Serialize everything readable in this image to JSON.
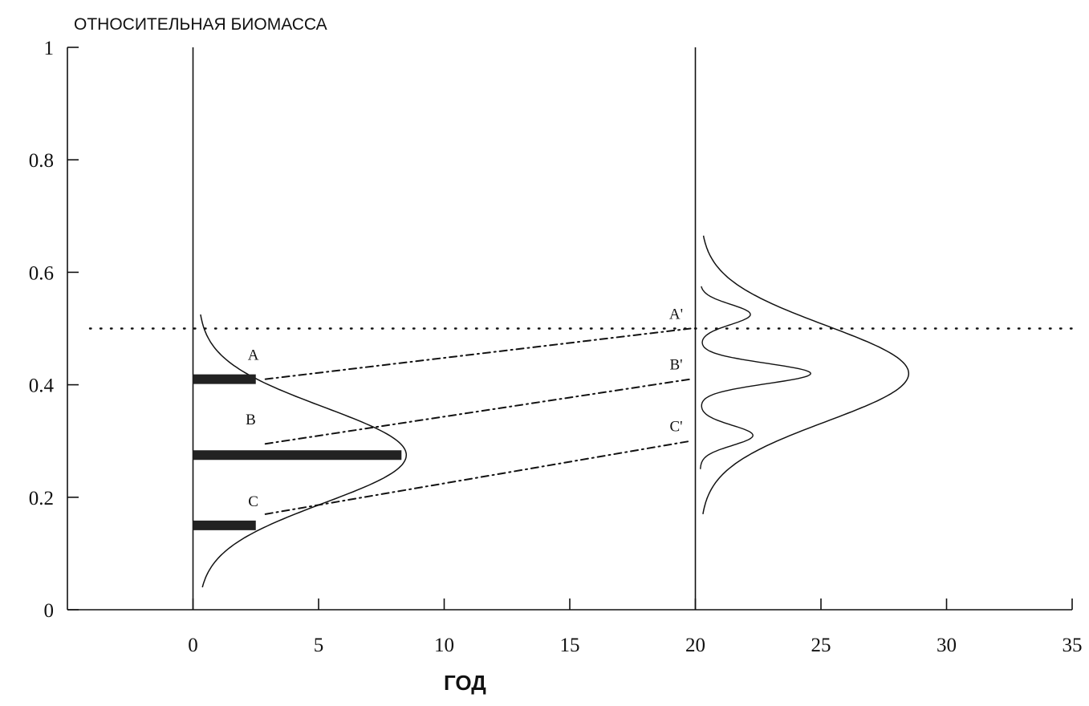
{
  "chart_data": {
    "type": "line",
    "title": "",
    "ylabel": "ОТНОСИТЕЛЬНАЯ   БИОМАССА",
    "xlabel": "ГОД",
    "xlim": [
      -5,
      35
    ],
    "ylim": [
      0,
      1
    ],
    "x_ticks": [
      0,
      5,
      10,
      15,
      20,
      25,
      30,
      35
    ],
    "y_ticks": [
      {
        "value": 0,
        "label": "0"
      },
      {
        "value": 0.2,
        "label": "0.2"
      },
      {
        "value": 0.4,
        "label": "0.4"
      },
      {
        "value": 0.6,
        "label": "0.6"
      },
      {
        "value": 0.8,
        "label": "0.8"
      },
      {
        "value": 1,
        "label": "1"
      }
    ],
    "grid": false,
    "threshold_line": {
      "y": 0.5,
      "style": "dotted"
    },
    "vertical_baselines": [
      0,
      20
    ],
    "initial_distribution": {
      "baseline_year": 0,
      "mean": 0.275,
      "sd": 0.085,
      "peak_year_offset": 8.3,
      "y_range": [
        0.04,
        0.525
      ]
    },
    "initial_points": [
      {
        "label": "A",
        "biomass": 0.41,
        "year_offset": 2.5
      },
      {
        "label": "B",
        "biomass": 0.275,
        "year_offset": 8.3
      },
      {
        "label": "C",
        "biomass": 0.15,
        "year_offset": 2.5
      }
    ],
    "final_distribution": {
      "baseline_year": 20,
      "mean": 0.42,
      "sd": 0.085,
      "peak_year_offset": 8.3,
      "y_range": [
        0.17,
        0.665
      ]
    },
    "final_component_curve": {
      "baseline_year": 20,
      "peaks": [
        {
          "biomass": 0.525,
          "year_offset": 2.0
        },
        {
          "biomass": 0.42,
          "year_offset": 4.4
        },
        {
          "biomass": 0.31,
          "year_offset": 2.1
        }
      ],
      "y_range": [
        0.25,
        0.575
      ]
    },
    "trajectories": [
      {
        "from": "A",
        "to": "A'",
        "start": {
          "year": 2.5,
          "biomass": 0.41
        },
        "end": {
          "year": 20,
          "biomass": 0.5
        },
        "style": "dash-dot"
      },
      {
        "from": "B",
        "to": "B'",
        "start": {
          "year": 2.5,
          "biomass": 0.295
        },
        "end": {
          "year": 20,
          "biomass": 0.41
        },
        "style": "dash-dot"
      },
      {
        "from": "C",
        "to": "C'",
        "start": {
          "year": 2.5,
          "biomass": 0.17
        },
        "end": {
          "year": 20,
          "biomass": 0.3
        },
        "style": "dash-dot"
      }
    ],
    "final_point_labels": [
      "A'",
      "B'",
      "C'"
    ]
  }
}
